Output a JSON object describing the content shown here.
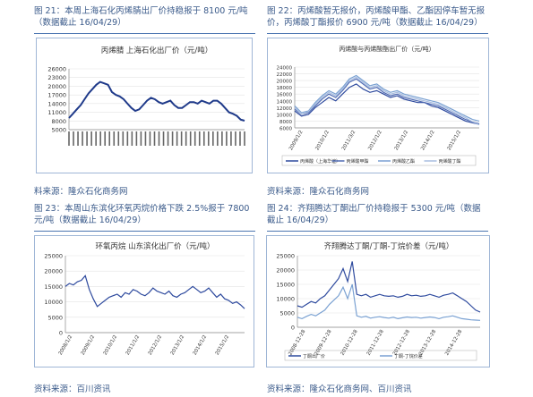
{
  "figures": [
    {
      "caption": "图 21：本周上海石化丙烯腈出厂价持稳报于 8100 元/吨（数据截止 16/04/29）",
      "source": "料来源：隆众石化商务网"
    },
    {
      "caption": "图 22：丙烯酸暂无报价，丙烯酸甲酯、乙酯因停车暂无报价，丙烯酸丁酯报价 6900 元/吨（数据截止 16/04/29）",
      "source": "资料来源：隆众石化商务网"
    },
    {
      "caption": "图 23：本周山东滨化环氧丙烷价格下跌 2.5%报于 7800 元/吨（数据截止 16/04/29）",
      "source": "资料来源：百川资讯"
    },
    {
      "caption": "图 24：齐翔腾达丁酮出厂价持稳报于 5300 元/吨（数据截止 16/04/29）",
      "source": "资料来源：隆众石化商务网、百川资讯"
    }
  ],
  "chart_data": [
    {
      "type": "line",
      "title": "丙烯腈 上海石化出厂价（元/吨）",
      "yticks": [
        "26000",
        "23000",
        "20000",
        "17000",
        "14000",
        "11000",
        "8000",
        "5000"
      ],
      "ylim": [
        5000,
        26000
      ],
      "series": [
        {
          "values": [
            9000,
            10500,
            12000,
            13500,
            15500,
            17500,
            19000,
            20500,
            21500,
            21000,
            20500,
            18000,
            17000,
            16500,
            15500,
            14000,
            12500,
            11500,
            12000,
            13500,
            15000,
            16000,
            15500,
            14500,
            14000,
            14500,
            15000,
            13500,
            12500,
            12500,
            13500,
            14500,
            14500,
            14000,
            15000,
            14500,
            14000,
            15000,
            15000,
            14000,
            12500,
            11000,
            10500,
            9800,
            8500,
            8100
          ]
        }
      ],
      "color": "#1f3a8a"
    },
    {
      "type": "line",
      "title": "丙烯酸与丙烯酸酯出厂价（元/吨）",
      "yticks": [
        "24000",
        "22000",
        "20000",
        "18000",
        "16000",
        "14000",
        "12000",
        "10000",
        "8000",
        "6000"
      ],
      "xticks": [
        "2009/1/2",
        "2010/1/2",
        "2011/3/2",
        "2012/1/2",
        "2013/1/2",
        "2014/1/2",
        "2015/1/2"
      ],
      "ylim": [
        6000,
        24000
      ],
      "series": [
        {
          "name": "丙烯酸（上海华谊）",
          "color": "#2e4a9e",
          "values": [
            11000,
            9500,
            10000,
            12000,
            13500,
            15000,
            14000,
            16000,
            18000,
            19000,
            17500,
            16500,
            17000,
            16000,
            15000,
            15500,
            14500,
            14000,
            13500,
            13500,
            12500,
            12000,
            11000,
            10000,
            9000,
            8000,
            7500,
            7000
          ]
        },
        {
          "name": "丙烯酸甲酯",
          "color": "#4f6bb3",
          "values": [
            11500,
            10000,
            10500,
            12500,
            14500,
            16000,
            15000,
            17000,
            19500,
            20500,
            19000,
            17500,
            18000,
            16500,
            15500,
            16000,
            15000,
            14500,
            14000,
            13500,
            13000,
            12500,
            11500,
            10500,
            9500,
            8500,
            7800,
            7200
          ]
        },
        {
          "name": "丙烯酸乙酯",
          "color": "#7aa1d2",
          "values": [
            12500,
            10500,
            11000,
            13500,
            15500,
            17000,
            16000,
            18000,
            20500,
            21500,
            20000,
            18500,
            19000,
            17500,
            16500,
            17000,
            16000,
            15500,
            15000,
            14500,
            14000,
            13500,
            12500,
            11500,
            10500,
            9500,
            8500,
            8000
          ]
        },
        {
          "name": "丙烯酸丁酯",
          "color": "#a8bde0",
          "values": [
            12000,
            10000,
            10800,
            13000,
            15000,
            16500,
            15500,
            17500,
            20000,
            21000,
            19500,
            18000,
            18500,
            17000,
            16000,
            16500,
            15500,
            15000,
            14500,
            14000,
            13500,
            13000,
            12000,
            11000,
            10000,
            9000,
            7800,
            6900
          ]
        }
      ]
    },
    {
      "type": "line",
      "title": "环氧丙烷 山东滨化出厂价（元/吨）",
      "yticks": [
        "25000",
        "20000",
        "15000",
        "10000",
        "5000",
        "0"
      ],
      "xticks": [
        "2008/1/2",
        "2009/1/2",
        "2010/1/2",
        "2011/1/2",
        "2012/1/2",
        "2013/1/2",
        "2014/1/2",
        "2015/1/2"
      ],
      "ylim": [
        0,
        25000
      ],
      "series": [
        {
          "values": [
            15000,
            16000,
            15500,
            16500,
            17000,
            18500,
            14000,
            11000,
            8500,
            9500,
            10500,
            11500,
            12000,
            12500,
            11500,
            13000,
            12500,
            14000,
            13500,
            12500,
            12000,
            13000,
            14500,
            13500,
            13000,
            12500,
            13500,
            12000,
            11500,
            12500,
            13000,
            14000,
            15000,
            14000,
            13000,
            13500,
            14500,
            13000,
            11500,
            12500,
            11000,
            10500,
            9500,
            10000,
            9000,
            7800
          ]
        }
      ],
      "color": "#2e4a9e"
    },
    {
      "type": "line",
      "title": "齐翔腾达丁酮/丁酮-丁烷价差（元/吨）",
      "yticks": [
        "25000",
        "20000",
        "15000",
        "10000",
        "5000",
        "0"
      ],
      "xticks": [
        "2008-12-28",
        "2009-12-28",
        "2010-12-28",
        "2011-12-28",
        "2012-12-28",
        "2013-12-28",
        "2014-12-28"
      ],
      "ylim": [
        0,
        25000
      ],
      "series": [
        {
          "name": "丁酮出厂价",
          "color": "#2e4a9e",
          "values": [
            7500,
            7000,
            8000,
            9000,
            8500,
            10000,
            11000,
            13000,
            15000,
            17000,
            20500,
            16000,
            23000,
            11500,
            11000,
            11500,
            10500,
            11000,
            11500,
            11000,
            10800,
            11000,
            10500,
            10800,
            11500,
            11000,
            11200,
            10800,
            11000,
            11500,
            11000,
            10500,
            11200,
            11500,
            12000,
            11000,
            10000,
            9000,
            7500,
            6000,
            5300
          ]
        },
        {
          "name": "丁酮-丁烷价差",
          "color": "#7aa1d2",
          "values": [
            3500,
            3000,
            3800,
            4500,
            4000,
            5000,
            6000,
            8000,
            9500,
            11000,
            14000,
            10000,
            15000,
            4000,
            3500,
            3800,
            3200,
            3500,
            3700,
            3400,
            3200,
            3500,
            3000,
            3300,
            3600,
            3400,
            3500,
            3200,
            3400,
            3600,
            3400,
            3000,
            3500,
            3700,
            4000,
            3500,
            3000,
            2800,
            2600,
            2500,
            2400
          ]
        }
      ]
    }
  ]
}
